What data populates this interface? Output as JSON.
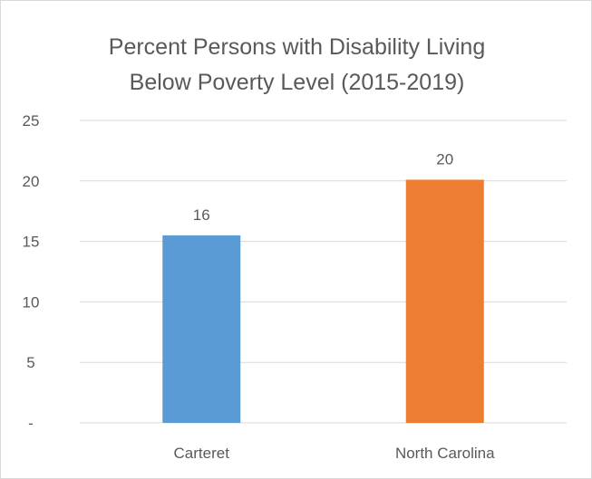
{
  "chart_data": {
    "type": "bar",
    "title_lines": [
      "Percent Persons with Disability Living",
      "Below Poverty Level (2015-2019)"
    ],
    "categories": [
      "Carteret",
      "North Carolina"
    ],
    "values": [
      15.5,
      20.1
    ],
    "data_labels": [
      "16",
      "20"
    ],
    "bar_colors": [
      "#5b9bd5",
      "#ed7d31"
    ],
    "ylim": [
      0,
      25
    ],
    "yticks": [
      0,
      5,
      10,
      15,
      20,
      25
    ],
    "ytick_labels": [
      "-",
      "5",
      "10",
      "15",
      "20",
      "25"
    ],
    "grid": true,
    "xlabel": "",
    "ylabel": ""
  }
}
